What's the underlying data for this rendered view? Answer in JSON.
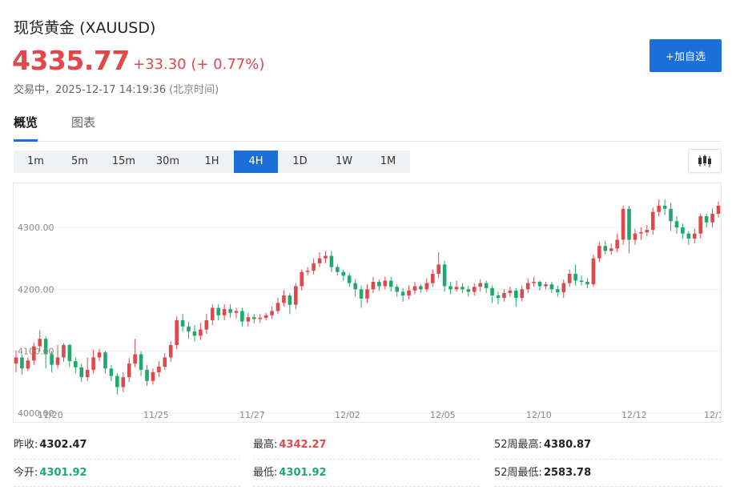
{
  "header": {
    "name": "现货黄金",
    "symbol": "(XAUUSD)",
    "price": "4335.77",
    "change": "+33.30 (+ 0.77%)",
    "status": "交易中，",
    "datetime": "2025-12-17 14:19:36",
    "timezone": "(北京时间)",
    "add_watchlist_label": "+加自选",
    "price_color": "#e0484b"
  },
  "tabs": [
    {
      "label": "概览",
      "active": true
    },
    {
      "label": "图表",
      "active": false
    }
  ],
  "ranges": [
    "1m",
    "5m",
    "15m",
    "30m",
    "1H",
    "4H",
    "1D",
    "1W",
    "1M"
  ],
  "active_range": "4H",
  "chart_type_icon": "candlestick-icon",
  "chart_data": {
    "type": "candlestick",
    "y_ticks": [
      "4000.00",
      "4100.00",
      "4200.00",
      "4300.00"
    ],
    "x_ticks": [
      "11/20",
      "11/25",
      "11/27",
      "12/02",
      "12/05",
      "12/10",
      "12/12",
      "12/1"
    ],
    "ylim": [
      4000,
      4335
    ],
    "grid": true,
    "up_color": "#e0484b",
    "down_color": "#1eaa6c",
    "candles": [
      [
        4080,
        4090,
        4101,
        4066
      ],
      [
        4090,
        4072,
        4095,
        4062
      ],
      [
        4072,
        4085,
        4090,
        4068
      ],
      [
        4085,
        4108,
        4114,
        4078
      ],
      [
        4108,
        4120,
        4134,
        4100
      ],
      [
        4120,
        4095,
        4124,
        4072
      ],
      [
        4095,
        4078,
        4100,
        4066
      ],
      [
        4078,
        4090,
        4110,
        4072
      ],
      [
        4090,
        4110,
        4113,
        4083
      ],
      [
        4110,
        4084,
        4112,
        4074
      ],
      [
        4084,
        4074,
        4090,
        4064
      ],
      [
        4074,
        4058,
        4080,
        4050
      ],
      [
        4058,
        4070,
        4090,
        4052
      ],
      [
        4070,
        4090,
        4102,
        4064
      ],
      [
        4090,
        4098,
        4104,
        4084
      ],
      [
        4098,
        4072,
        4100,
        4064
      ],
      [
        4072,
        4060,
        4078,
        4052
      ],
      [
        4060,
        4042,
        4064,
        4030
      ],
      [
        4042,
        4058,
        4066,
        4034
      ],
      [
        4058,
        4080,
        4089,
        4050
      ],
      [
        4080,
        4095,
        4120,
        4074
      ],
      [
        4095,
        4070,
        4100,
        4060
      ],
      [
        4070,
        4052,
        4078,
        4044
      ],
      [
        4052,
        4066,
        4072,
        4046
      ],
      [
        4066,
        4075,
        4084,
        4058
      ],
      [
        4075,
        4090,
        4097,
        4070
      ],
      [
        4090,
        4110,
        4116,
        4083
      ],
      [
        4110,
        4150,
        4156,
        4103
      ],
      [
        4150,
        4140,
        4160,
        4132
      ],
      [
        4140,
        4132,
        4148,
        4120
      ],
      [
        4132,
        4125,
        4142,
        4116
      ],
      [
        4125,
        4135,
        4146,
        4118
      ],
      [
        4135,
        4150,
        4160,
        4128
      ],
      [
        4150,
        4170,
        4176,
        4142
      ],
      [
        4170,
        4158,
        4176,
        4150
      ],
      [
        4158,
        4168,
        4176,
        4150
      ],
      [
        4168,
        4162,
        4176,
        4154
      ],
      [
        4162,
        4165,
        4170,
        4153
      ],
      [
        4165,
        4148,
        4170,
        4140
      ],
      [
        4148,
        4155,
        4162,
        4140
      ],
      [
        4155,
        4152,
        4160,
        4145
      ],
      [
        4152,
        4154,
        4160,
        4146
      ],
      [
        4154,
        4158,
        4162,
        4150
      ],
      [
        4158,
        4165,
        4172,
        4152
      ],
      [
        4165,
        4178,
        4186,
        4160
      ],
      [
        4178,
        4190,
        4198,
        4172
      ],
      [
        4190,
        4175,
        4194,
        4160
      ],
      [
        4175,
        4205,
        4210,
        4168
      ],
      [
        4205,
        4228,
        4232,
        4198
      ],
      [
        4228,
        4230,
        4236,
        4222
      ],
      [
        4230,
        4242,
        4250,
        4224
      ],
      [
        4242,
        4250,
        4260,
        4236
      ],
      [
        4250,
        4254,
        4262,
        4242
      ],
      [
        4254,
        4236,
        4262,
        4228
      ],
      [
        4236,
        4228,
        4240,
        4222
      ],
      [
        4228,
        4222,
        4232,
        4214
      ],
      [
        4222,
        4210,
        4226,
        4204
      ],
      [
        4210,
        4200,
        4216,
        4188
      ],
      [
        4200,
        4185,
        4206,
        4170
      ],
      [
        4185,
        4200,
        4208,
        4178
      ],
      [
        4200,
        4212,
        4220,
        4194
      ],
      [
        4212,
        4205,
        4216,
        4198
      ],
      [
        4205,
        4214,
        4220,
        4200
      ],
      [
        4214,
        4204,
        4220,
        4196
      ],
      [
        4204,
        4196,
        4208,
        4188
      ],
      [
        4196,
        4190,
        4202,
        4180
      ],
      [
        4190,
        4198,
        4206,
        4184
      ],
      [
        4198,
        4205,
        4212,
        4192
      ],
      [
        4205,
        4200,
        4208,
        4194
      ],
      [
        4200,
        4210,
        4218,
        4196
      ],
      [
        4210,
        4225,
        4232,
        4204
      ],
      [
        4225,
        4240,
        4260,
        4218
      ],
      [
        4240,
        4205,
        4246,
        4196
      ],
      [
        4205,
        4200,
        4212,
        4192
      ],
      [
        4200,
        4204,
        4214,
        4196
      ],
      [
        4204,
        4200,
        4210,
        4194
      ],
      [
        4200,
        4196,
        4206,
        4188
      ],
      [
        4196,
        4204,
        4210,
        4190
      ],
      [
        4204,
        4210,
        4216,
        4196
      ],
      [
        4210,
        4202,
        4214,
        4194
      ],
      [
        4202,
        4190,
        4206,
        4178
      ],
      [
        4190,
        4186,
        4196,
        4176
      ],
      [
        4186,
        4194,
        4200,
        4180
      ],
      [
        4194,
        4198,
        4204,
        4188
      ],
      [
        4198,
        4186,
        4202,
        4172
      ],
      [
        4186,
        4200,
        4206,
        4180
      ],
      [
        4200,
        4210,
        4218,
        4194
      ],
      [
        4210,
        4212,
        4220,
        4204
      ],
      [
        4212,
        4205,
        4214,
        4198
      ],
      [
        4205,
        4208,
        4212,
        4200
      ],
      [
        4208,
        4200,
        4212,
        4194
      ],
      [
        4200,
        4195,
        4206,
        4188
      ],
      [
        4195,
        4210,
        4216,
        4186
      ],
      [
        4210,
        4225,
        4232,
        4204
      ],
      [
        4225,
        4214,
        4240,
        4206
      ],
      [
        4214,
        4212,
        4222,
        4206
      ],
      [
        4212,
        4208,
        4218,
        4202
      ],
      [
        4208,
        4250,
        4256,
        4204
      ],
      [
        4250,
        4270,
        4276,
        4244
      ],
      [
        4270,
        4262,
        4278,
        4256
      ],
      [
        4262,
        4266,
        4274,
        4256
      ],
      [
        4266,
        4280,
        4290,
        4260
      ],
      [
        4280,
        4330,
        4335,
        4272
      ],
      [
        4330,
        4280,
        4335,
        4258
      ],
      [
        4280,
        4290,
        4298,
        4272
      ],
      [
        4290,
        4292,
        4300,
        4280
      ],
      [
        4292,
        4296,
        4304,
        4286
      ],
      [
        4296,
        4325,
        4332,
        4288
      ],
      [
        4325,
        4335,
        4345,
        4318
      ],
      [
        4335,
        4330,
        4345,
        4320
      ],
      [
        4330,
        4310,
        4340,
        4294
      ],
      [
        4310,
        4300,
        4318,
        4290
      ],
      [
        4300,
        4290,
        4306,
        4282
      ],
      [
        4290,
        4282,
        4294,
        4272
      ],
      [
        4282,
        4290,
        4298,
        4274
      ],
      [
        4290,
        4318,
        4322,
        4282
      ],
      [
        4318,
        4308,
        4322,
        4300
      ],
      [
        4308,
        4322,
        4330,
        4300
      ],
      [
        4322,
        4335,
        4342,
        4316
      ]
    ]
  },
  "stats": [
    {
      "label": "昨收:",
      "value": "4302.47",
      "color": "dark"
    },
    {
      "label": "最高:",
      "value": "4342.27",
      "color": "red"
    },
    {
      "label": "52周最高:",
      "value": "4380.87",
      "color": "dark"
    },
    {
      "label": "今开:",
      "value": "4301.92",
      "color": "green"
    },
    {
      "label": "最低:",
      "value": "4301.92",
      "color": "green"
    },
    {
      "label": "52周最低:",
      "value": "2583.78",
      "color": "dark"
    }
  ]
}
